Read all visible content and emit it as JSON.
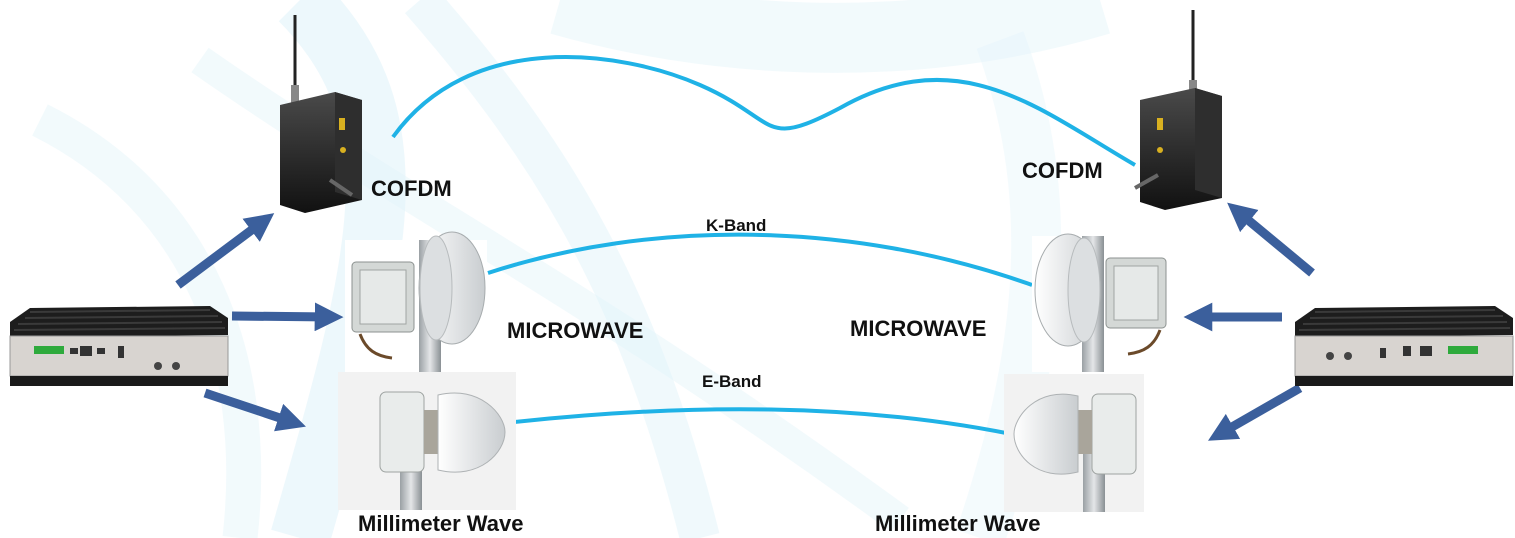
{
  "labels": {
    "cofdm_left": "COFDM",
    "cofdm_right": "COFDM",
    "microwave_left": "MICROWAVE",
    "microwave_right": "MICROWAVE",
    "mmwave_left": "Millimeter Wave",
    "mmwave_right": "Millimeter Wave",
    "kband": "K-Band",
    "eband": "E-Band"
  },
  "colors": {
    "link": "#1fb2e6",
    "arrow": "#3b5f9c",
    "swirl": "#bfe6f4",
    "device_dark": "#1e1e1e",
    "dish": "#eef0f1"
  }
}
